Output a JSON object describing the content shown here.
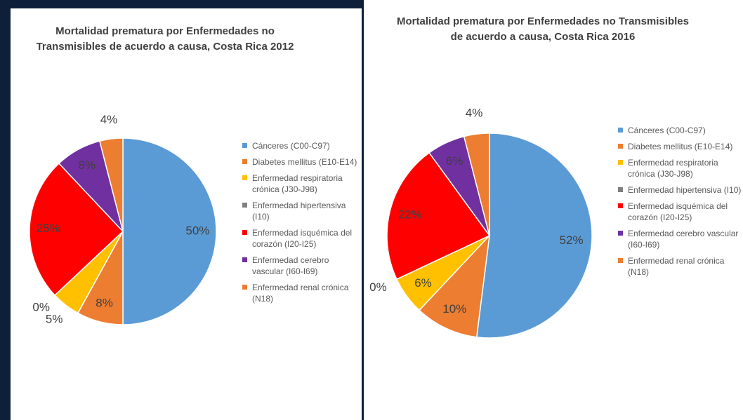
{
  "chart_data": [
    {
      "type": "pie",
      "title": "Mortalidad prematura por Enfermedades no Transmisibles de acuerdo a causa, Costa Rica 2012",
      "categories": [
        "Cánceres (C00-C97)",
        "Diabetes mellitus (E10-E14)",
        "Enfermedad respiratoria crónica (J30-J98)",
        "Enfermedad hipertensiva (I10)",
        "Enfermedad isquémica del corazón (I20-I25)",
        "Enfermedad cerebro vascular (I60-I69)",
        "Enfermedad renal crónica (N18)"
      ],
      "values": [
        50,
        8,
        5,
        0,
        25,
        8,
        4
      ],
      "colors": [
        "#5b9bd5",
        "#ed7d31",
        "#ffc000",
        "#7f7f7f",
        "#ff0000",
        "#7030a0",
        "#ed7d31"
      ],
      "legend": "right"
    },
    {
      "type": "pie",
      "title": "Mortalidad prematura por Enfermedades no Transmisibles de acuerdo a causa, Costa Rica 2016",
      "categories": [
        "Cánceres (C00-C97)",
        "Diabetes mellitus (E10-E14)",
        "Enfermedad respiratoria crónica (J30-J98)",
        "Enfermedad hipertensiva (I10)",
        "Enfermedad isquémica del corazón (I20-I25)",
        "Enfermedad cerebro vascular (I60-I69)",
        "Enfermedad renal crónica (N18)"
      ],
      "values": [
        52,
        10,
        6,
        0,
        22,
        6,
        4
      ],
      "colors": [
        "#5b9bd5",
        "#ed7d31",
        "#ffc000",
        "#7f7f7f",
        "#ff0000",
        "#7030a0",
        "#ed7d31"
      ],
      "legend": "right"
    }
  ]
}
